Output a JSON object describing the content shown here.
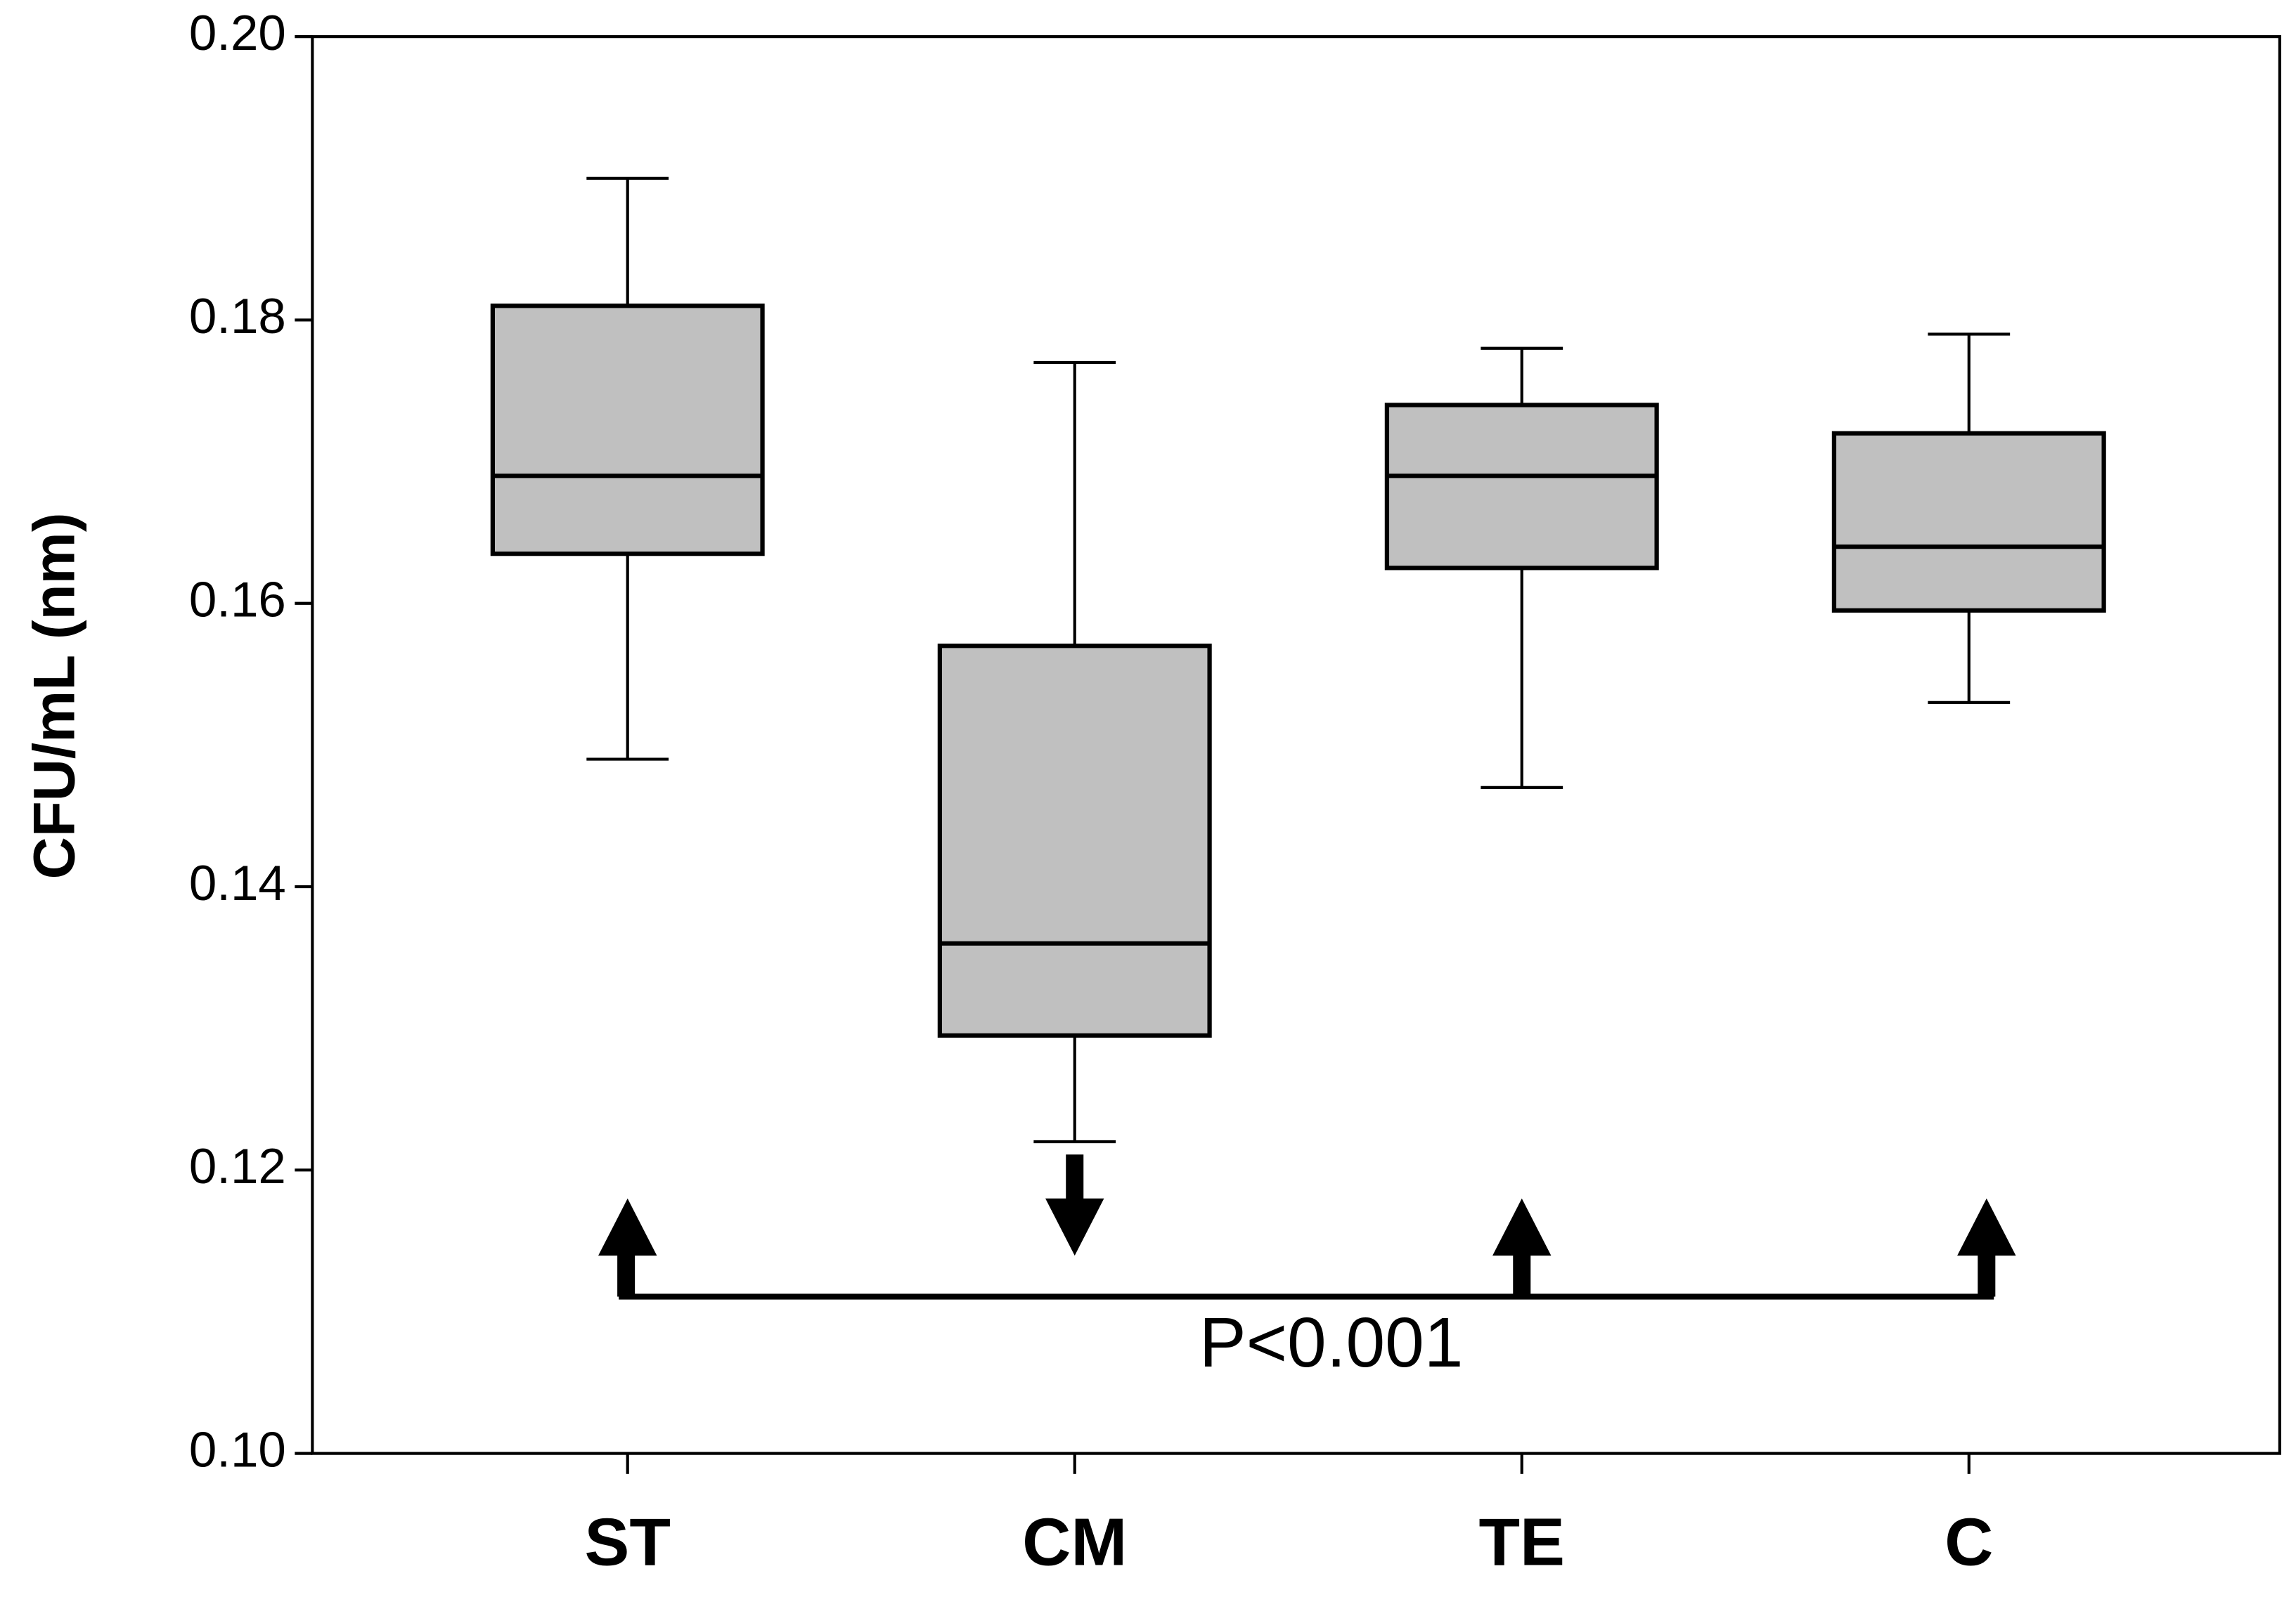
{
  "chart_data": {
    "type": "box",
    "ylabel": "CFU/mL (nm)",
    "annotation": "P<0.001",
    "categories": [
      "ST",
      "CM",
      "TE",
      "C"
    ],
    "boxes": [
      {
        "min": 0.149,
        "q1": 0.1635,
        "median": 0.169,
        "q3": 0.181,
        "max": 0.19
      },
      {
        "min": 0.122,
        "q1": 0.1295,
        "median": 0.136,
        "q3": 0.157,
        "max": 0.177
      },
      {
        "min": 0.147,
        "q1": 0.1625,
        "median": 0.169,
        "q3": 0.174,
        "max": 0.178
      },
      {
        "min": 0.153,
        "q1": 0.1595,
        "median": 0.164,
        "q3": 0.172,
        "max": 0.179
      }
    ],
    "color": "#c0c0c0",
    "ylim": [
      0.1,
      0.2
    ],
    "yticks": [
      {
        "value": 0.1,
        "label": "0.10"
      },
      0.12,
      0.14,
      0.16,
      0.18,
      {
        "value": 0.2,
        "label": "0.20"
      }
    ]
  }
}
